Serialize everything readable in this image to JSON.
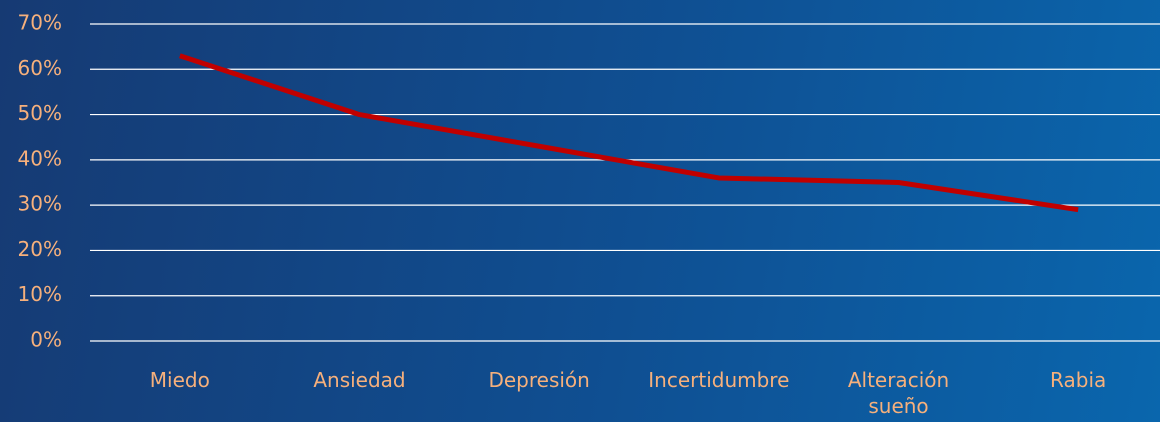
{
  "chart_data": {
    "type": "line",
    "categories": [
      "Miedo",
      "Ansiedad",
      "Depresión",
      "Incertidumbre",
      "Alteración sueño",
      "Rabia"
    ],
    "series": [
      {
        "color": "#c00000",
        "values": [
          63,
          50,
          43,
          36,
          35,
          29
        ]
      }
    ],
    "ylim": [
      0,
      70
    ],
    "yticks": [
      {
        "value": 0,
        "label": "0%"
      },
      {
        "value": 10,
        "label": "10%"
      },
      {
        "value": 20,
        "label": "20%"
      },
      {
        "value": 30,
        "label": "30%"
      },
      {
        "value": 40,
        "label": "40%"
      },
      {
        "value": 50,
        "label": "50%"
      },
      {
        "value": 60,
        "label": "60%"
      },
      {
        "value": 70,
        "label": "70%"
      }
    ],
    "grid": true
  }
}
